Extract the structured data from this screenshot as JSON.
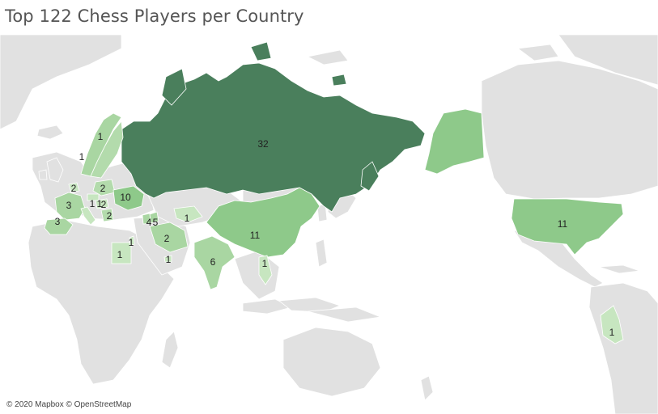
{
  "title": "Top 122 Chess Players per Country",
  "attribution": "© 2020 Mapbox © OpenStreetMap",
  "colors": {
    "ocean": "#ffffff",
    "land": "#e1e1e1",
    "border": "#ffffff",
    "scale_low": "#c7e6c0",
    "scale_mid": "#8ec98a",
    "scale_high": "#4a7f5c"
  },
  "regions": [
    {
      "id": "russia",
      "value": "32"
    },
    {
      "id": "usa",
      "value": "11"
    },
    {
      "id": "china",
      "value": "11"
    },
    {
      "id": "ukraine",
      "value": "10"
    },
    {
      "id": "india",
      "value": "6"
    },
    {
      "id": "armenia",
      "value": "5"
    },
    {
      "id": "azerbaijan",
      "value": "4"
    },
    {
      "id": "france",
      "value": "3"
    },
    {
      "id": "spain",
      "value": "3"
    },
    {
      "id": "poland",
      "value": "2"
    },
    {
      "id": "iran",
      "value": "2"
    },
    {
      "id": "netherlands",
      "value": "2"
    },
    {
      "id": "hungary",
      "value": "2"
    },
    {
      "id": "serbia",
      "value": "2"
    },
    {
      "id": "norway",
      "value": "1"
    },
    {
      "id": "sweden",
      "value": "1"
    },
    {
      "id": "egypt",
      "value": "1"
    },
    {
      "id": "israel",
      "value": "1"
    },
    {
      "id": "uae",
      "value": "1"
    },
    {
      "id": "uzbekistan",
      "value": "1"
    },
    {
      "id": "vietnam",
      "value": "1"
    },
    {
      "id": "peru",
      "value": "1"
    },
    {
      "id": "italy",
      "value": "1"
    },
    {
      "id": "czech",
      "value": "1"
    }
  ]
}
